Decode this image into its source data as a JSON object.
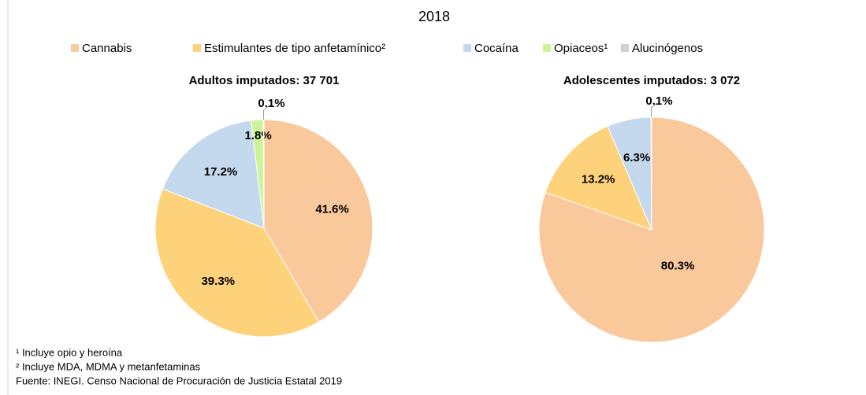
{
  "title": "2018",
  "chart_data": [
    {
      "type": "pie",
      "title": "Adultos imputados: 37 701",
      "categories": [
        "Cannabis",
        "Estimulantes de tipo anfetamínico²",
        "Cocaína",
        "Opiaceos¹",
        "Alucinógenos"
      ],
      "values": [
        41.6,
        39.3,
        17.2,
        1.8,
        0.1
      ],
      "value_labels": [
        "41.6%",
        "39.3%",
        "17.2%",
        "1.8%",
        "0.1%"
      ],
      "colors": [
        "#f9c89b",
        "#fdd27a",
        "#c5d9ee",
        "#ccf59a",
        "#d0d0d0"
      ]
    },
    {
      "type": "pie",
      "title": "Adolescentes imputados: 3 072",
      "categories": [
        "Cannabis",
        "Estimulantes de tipo anfetamínico²",
        "Cocaína",
        "Opiaceos¹",
        "Alucinógenos"
      ],
      "values": [
        80.3,
        13.2,
        6.3,
        null,
        0.1
      ],
      "value_labels": [
        "80.3%",
        "13.2%",
        "6.3%",
        null,
        "0.1%"
      ],
      "colors": [
        "#f9c89b",
        "#fdd27a",
        "#c5d9ee",
        "#ccf59a",
        "#d0d0d0"
      ]
    }
  ],
  "footnotes": [
    "¹ Incluye opio y heroína",
    "² Incluye MDA, MDMA y metanfetaminas",
    "Fuente: INEGI. Censo Nacional de Procuración de Justicia Estatal 2019"
  ]
}
